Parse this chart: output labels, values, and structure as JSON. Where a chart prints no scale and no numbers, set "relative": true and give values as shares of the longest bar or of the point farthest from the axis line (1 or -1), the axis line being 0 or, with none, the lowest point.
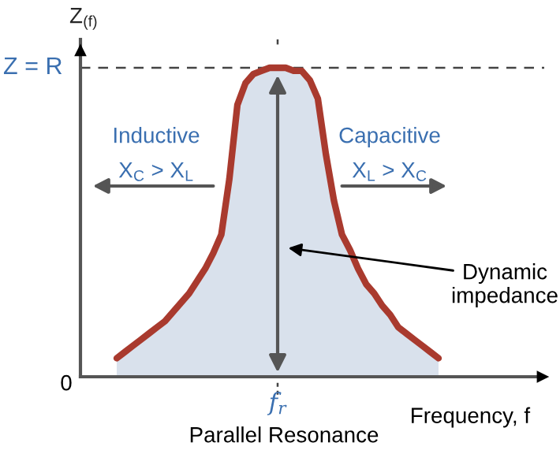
{
  "chart_data": {
    "type": "area",
    "relative": true,
    "xlabel": "Frequency, f",
    "ylabel": "Z$_{(f)}$",
    "categories": [
      null,
      null,
      null,
      null,
      null,
      null,
      null,
      null,
      null,
      null,
      null,
      null,
      null,
      null,
      null,
      null,
      null,
      null,
      null,
      null,
      null,
      null,
      null,
      null,
      null,
      null,
      null,
      null,
      null,
      null,
      null,
      null,
      null,
      null,
      null,
      null,
      null,
      null,
      null,
      null,
      null
    ],
    "series": [
      {
        "color": "#a93a2e",
        "values": [
          0.06,
          0.08,
          0.1,
          0.12,
          0.14,
          0.16,
          0.18,
          0.21,
          0.24,
          0.27,
          0.31,
          0.35,
          0.4,
          0.46,
          0.64,
          0.88,
          0.95,
          0.98,
          0.99,
          1.0,
          1.0,
          1.0,
          0.99,
          0.99,
          0.96,
          0.9,
          0.72,
          0.57,
          0.46,
          0.41,
          0.35,
          0.3,
          0.27,
          0.23,
          0.2,
          0.16,
          0.14,
          0.12,
          0.1,
          0.08,
          0.06
        ]
      }
    ],
    "ref_lines": [
      {
        "axis": "y",
        "value": 1,
        "label": "Z = R",
        "line_style": "dashed",
        "color": "#444444"
      }
    ],
    "annotations": [
      "Inductive",
      "X$_{C}$ > X$_{L}$",
      "Capacitive",
      "X$_{L}$ > X$_{C}$",
      "Dynamic\nimpedance",
      "Parallel Resonance",
      "0",
      "f$_{r}$"
    ]
  }
}
